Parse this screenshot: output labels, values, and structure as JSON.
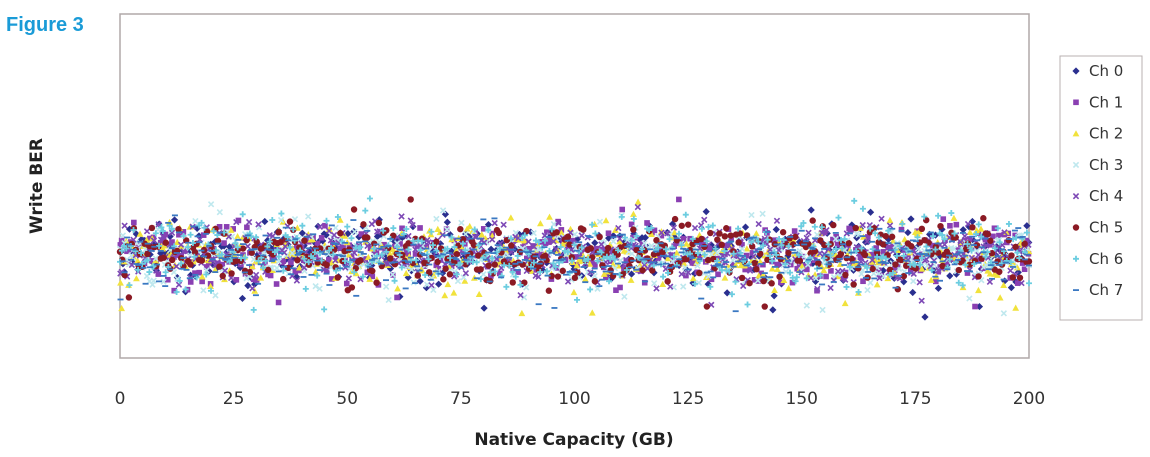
{
  "figure_label": "Figure 3",
  "chart_data": {
    "type": "scatter",
    "title": "",
    "xlabel": "Native Capacity (GB)",
    "ylabel": "Write BER",
    "xlim": [
      0,
      200
    ],
    "x_ticks": [
      "0",
      "25",
      "50",
      "75",
      "100",
      "125",
      "150",
      "175",
      "200"
    ],
    "y_ticks_labeled": false,
    "grid": false,
    "legend_position": "right",
    "point_spacing_gb": 0.5,
    "points_per_series": 401,
    "y_scale_note": "y values are relative BER units (0 = bottom of plot, 1 = top); no y tick labels are printed",
    "series": [
      {
        "name": "Ch 0",
        "color": "#2a2f8f",
        "marker": "diamond",
        "mean": 0.305,
        "spread": 0.045
      },
      {
        "name": "Ch 1",
        "color": "#8a3fb2",
        "marker": "square",
        "mean": 0.305,
        "spread": 0.045
      },
      {
        "name": "Ch 2",
        "color": "#f1e23c",
        "marker": "triangle",
        "mean": 0.3,
        "spread": 0.045
      },
      {
        "name": "Ch 3",
        "color": "#bfe8ee",
        "marker": "x",
        "mean": 0.3,
        "spread": 0.045
      },
      {
        "name": "Ch 4",
        "color": "#7d48b5",
        "marker": "x",
        "mean": 0.31,
        "spread": 0.045
      },
      {
        "name": "Ch 5",
        "color": "#8b1a24",
        "marker": "circle",
        "mean": 0.305,
        "spread": 0.045
      },
      {
        "name": "Ch 6",
        "color": "#6ccde0",
        "marker": "plus",
        "mean": 0.31,
        "spread": 0.045
      },
      {
        "name": "Ch 7",
        "color": "#3a78c2",
        "marker": "dash",
        "mean": 0.3,
        "spread": 0.04
      }
    ]
  }
}
